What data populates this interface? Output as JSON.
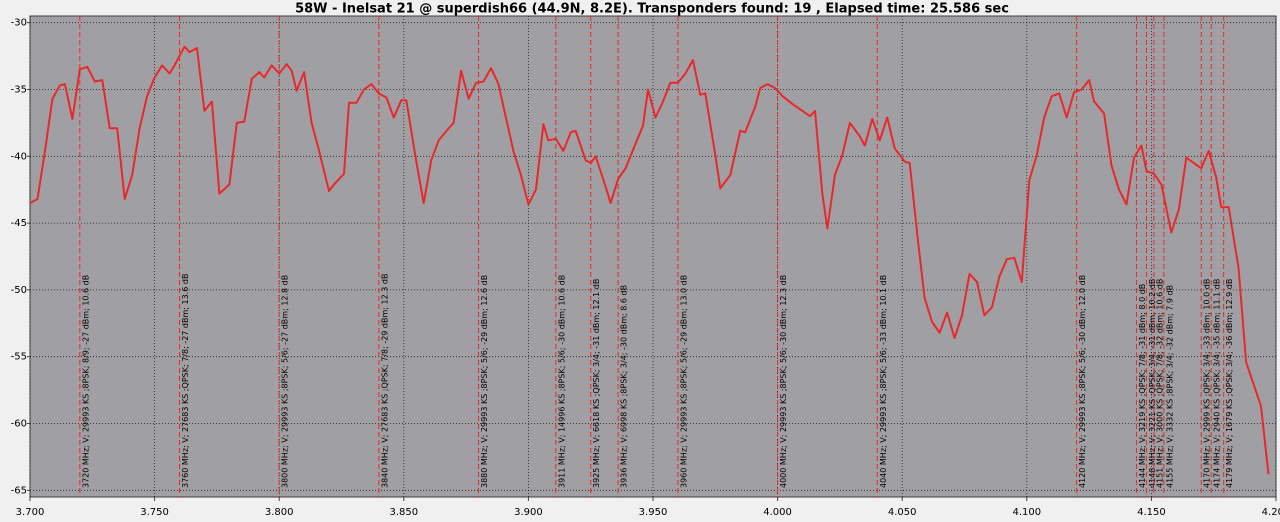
{
  "chart_data": {
    "type": "line",
    "title": "58W - Inelsat 21 @ superdish66 (44.9N, 8.2E). Transponders found: 19 , Elapsed time: 25.586 sec",
    "x": [
      3.7,
      3.703,
      3.706,
      3.709,
      3.712,
      3.714,
      3.717,
      3.72,
      3.723,
      3.726,
      3.729,
      3.732,
      3.735,
      3.738,
      3.741,
      3.744,
      3.747,
      3.75,
      3.753,
      3.756,
      3.758,
      3.762,
      3.764,
      3.767,
      3.77,
      3.773,
      3.776,
      3.78,
      3.783,
      3.786,
      3.789,
      3.792,
      3.794,
      3.797,
      3.8,
      3.803,
      3.805,
      3.807,
      3.81,
      3.813,
      3.816,
      3.82,
      3.822,
      3.826,
      3.828,
      3.831,
      3.834,
      3.837,
      3.84,
      3.843,
      3.846,
      3.849,
      3.851,
      3.855,
      3.858,
      3.861,
      3.864,
      3.868,
      3.87,
      3.873,
      3.876,
      3.879,
      3.882,
      3.885,
      3.888,
      3.89,
      3.894,
      3.897,
      3.9,
      3.903,
      3.906,
      3.908,
      3.911,
      3.914,
      3.917,
      3.919,
      3.923,
      3.925,
      3.927,
      3.931,
      3.933,
      3.936,
      3.939,
      3.942,
      3.946,
      3.948,
      3.951,
      3.954,
      3.957,
      3.96,
      3.963,
      3.966,
      3.969,
      3.971,
      3.975,
      3.977,
      3.981,
      3.985,
      3.987,
      3.991,
      3.993,
      3.996,
      3.999,
      4.002,
      4.006,
      4.01,
      4.013,
      4.015,
      4.018,
      4.02,
      4.023,
      4.026,
      4.029,
      4.033,
      4.035,
      4.038,
      4.041,
      4.044,
      4.047,
      4.051,
      4.053,
      4.056,
      4.059,
      4.062,
      4.065,
      4.068,
      4.071,
      4.074,
      4.077,
      4.08,
      4.083,
      4.086,
      4.089,
      4.092,
      4.095,
      4.098,
      4.101,
      4.104,
      4.107,
      4.11,
      4.113,
      4.116,
      4.119,
      4.122,
      4.125,
      4.127,
      4.131,
      4.134,
      4.137,
      4.14,
      4.143,
      4.146,
      4.148,
      4.151,
      4.154,
      4.158,
      4.161,
      4.164,
      4.17,
      4.173,
      4.176,
      4.178,
      4.181,
      4.185,
      4.188,
      4.194,
      4.197
    ],
    "series": [
      {
        "color": "#e8282a",
        "values": [
          -43.5,
          -43.2,
          -39.6,
          -35.7,
          -34.7,
          -34.6,
          -37.2,
          -33.5,
          -33.3,
          -34.4,
          -34.3,
          -37.9,
          -37.9,
          -43.2,
          -41.4,
          -37.9,
          -35.5,
          -34.1,
          -33.2,
          -33.8,
          -33.2,
          -31.8,
          -32.2,
          -31.9,
          -36.6,
          -35.9,
          -42.8,
          -42.1,
          -37.5,
          -37.4,
          -34.2,
          -33.7,
          -34.1,
          -33.2,
          -33.8,
          -33.1,
          -33.6,
          -35.1,
          -33.7,
          -37.5,
          -39.6,
          -42.6,
          -42.1,
          -41.3,
          -36.0,
          -36.0,
          -35.0,
          -34.6,
          -35.3,
          -35.6,
          -37.1,
          -35.8,
          -35.8,
          -40.4,
          -43.5,
          -40.3,
          -38.8,
          -37.9,
          -37.5,
          -33.6,
          -35.7,
          -34.5,
          -34.4,
          -33.4,
          -34.6,
          -36.3,
          -39.6,
          -41.4,
          -43.6,
          -42.5,
          -37.6,
          -38.8,
          -38.7,
          -39.6,
          -38.2,
          -38.1,
          -40.3,
          -40.5,
          -40.0,
          -42.3,
          -43.5,
          -41.7,
          -40.9,
          -39.5,
          -37.7,
          -35.0,
          -37.1,
          -35.9,
          -34.5,
          -34.5,
          -33.8,
          -32.8,
          -35.4,
          -35.3,
          -39.9,
          -42.4,
          -41.4,
          -38.1,
          -38.2,
          -36.3,
          -34.9,
          -34.6,
          -34.9,
          -35.5,
          -36.1,
          -36.6,
          -37.0,
          -36.6,
          -42.9,
          -45.4,
          -41.4,
          -39.9,
          -37.5,
          -38.5,
          -39.2,
          -37.2,
          -38.8,
          -37.1,
          -39.4,
          -40.4,
          -40.5,
          -45.8,
          -50.6,
          -52.4,
          -53.2,
          -51.7,
          -53.6,
          -51.9,
          -48.8,
          -49.4,
          -51.9,
          -51.3,
          -49.0,
          -47.7,
          -47.6,
          -49.4,
          -41.8,
          -39.9,
          -37.1,
          -35.5,
          -35.3,
          -37.1,
          -35.2,
          -35.0,
          -34.3,
          -35.9,
          -36.8,
          -40.7,
          -42.5,
          -43.6,
          -40.1,
          -39.2,
          -41.1,
          -41.3,
          -42.1,
          -45.7,
          -44.0,
          -40.1,
          -40.9,
          -39.6,
          -41.6,
          -43.8,
          -43.8,
          -48.4,
          -55.4,
          -58.7,
          -63.8
        ]
      }
    ],
    "xlim": [
      3.7,
      4.2
    ],
    "xticks": [
      {
        "value": 3.7,
        "label": "3.700"
      },
      {
        "value": 3.75,
        "label": "3.750"
      },
      {
        "value": 3.8,
        "label": "3.800"
      },
      {
        "value": 3.85,
        "label": "3.850"
      },
      {
        "value": 3.9,
        "label": "3.900"
      },
      {
        "value": 3.95,
        "label": "3.950"
      },
      {
        "value": 4.0,
        "label": "4.000"
      },
      {
        "value": 4.05,
        "label": "4.050"
      },
      {
        "value": 4.1,
        "label": "4.100"
      },
      {
        "value": 4.15,
        "label": "4.150"
      },
      {
        "value": 4.2,
        "label": "4.200"
      }
    ],
    "ylim": [
      -65.5,
      -29.5
    ],
    "yticks": [
      -30,
      -35,
      -40,
      -45,
      -50,
      -55,
      -60,
      -65
    ],
    "grid": true,
    "markers": [
      {
        "x": 3.72,
        "label": "3720 MHz; V; 29993 KS ;8PSK; 8/9; -27 dBm; 10.6 dB"
      },
      {
        "x": 3.76,
        "label": "3760 MHz; V; 27683 KS ;QPSK; 7/8; -27 dBm; 13.6 dB"
      },
      {
        "x": 3.8,
        "label": "3800 MHz; V; 29993 KS ;8PSK; 5/6; -27 dBm; 12.8 dB"
      },
      {
        "x": 3.84,
        "label": "3840 MHz; V; 27683 KS ;QPSK; 7/8; -29 dBm; 12.3 dB"
      },
      {
        "x": 3.88,
        "label": "3880 MHz; V; 29993 KS ;8PSK; 5/6; -29 dBm; 12.6 dB"
      },
      {
        "x": 3.911,
        "label": "3911 MHz; V; 14996 KS ;8PSK; 5/6; -30 dBm; 10.6 dB"
      },
      {
        "x": 3.925,
        "label": "3925 MHz; V; 6618 KS ;QPSK; 3/4; -31 dBm; 12.1 dB"
      },
      {
        "x": 3.936,
        "label": "3936 MHz; V; 6998 KS ;8PSK; 3/4; -30 dBm; 8.6 dB"
      },
      {
        "x": 3.96,
        "label": "3960 MHz; V; 29993 KS ;8PSK; 5/6; -29 dBm; 13.0 dB"
      },
      {
        "x": 4.0,
        "label": "4000 MHz; V; 29993 KS ;8PSK; 5/6; -30 dBm; 12.3 dB"
      },
      {
        "x": 4.04,
        "label": "4040 MHz; V; 29993 KS ;8PSK; 5/6; -33 dBm; 10.1 dB"
      },
      {
        "x": 4.12,
        "label": "4120 MHz; V; 29993 KS ;8PSK; 5/6; -30 dBm; 12.0 dB"
      },
      {
        "x": 4.144,
        "label": "4144 MHz; V; 3219 KS ;QPSK; 7/8; -31 dBm; 8.0 dB"
      },
      {
        "x": 4.148,
        "label": "4148 MHz; V; 3221 KS ;QPSK; 3/4; -31 dBm; 10.2 dB"
      },
      {
        "x": 4.151,
        "label": "4151 MHz; V; 3000 KS ;QPSK; 7/8; -32 dBm; 10.6 dB"
      },
      {
        "x": 4.155,
        "label": "4155 MHz; V; 3332 KS ;8PSK; 3/4; -32 dBm; 7.9 dB"
      },
      {
        "x": 4.17,
        "label": "4170 MHz; V; 2999 KS ;QPSK; 3/4; -33 dBm; 10.0 dB"
      },
      {
        "x": 4.174,
        "label": "4174 MHz; V; 2940 KS ;QPSK; 3/4; -35 dBm; 11.1 dB"
      },
      {
        "x": 4.179,
        "label": "4179 MHz; V; 1679 KS ;QPSK; 3/4; -36 dBm; 12.9 dB"
      }
    ]
  }
}
